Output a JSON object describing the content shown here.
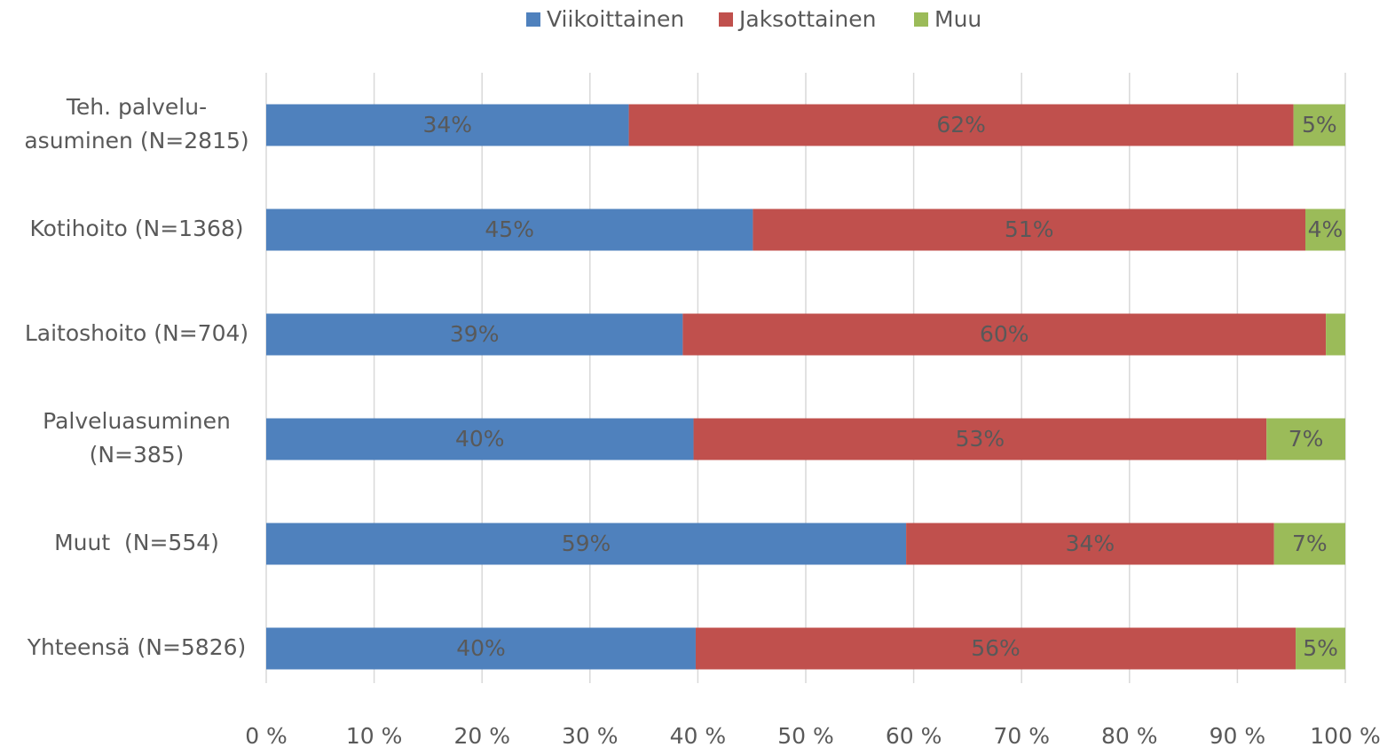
{
  "chart_data": {
    "type": "stacked_bar_horizontal",
    "categories": [
      "Teh. palvelu-\nasuminen (N=2815)",
      "Kotihoito (N=1368)",
      "Laitoshoito (N=704)",
      "Palveluasuminen\n(N=385)",
      "Muut  (N=554)",
      "Yhteensä (N=5826)"
    ],
    "series": [
      {
        "name": "Viikoittainen",
        "color": "#4f81bd",
        "values": [
          33.6,
          45.1,
          38.6,
          39.6,
          59.3,
          39.8
        ],
        "value_labels": [
          "34%",
          "45%",
          "39%",
          "40%",
          "59%",
          "40%"
        ]
      },
      {
        "name": "Jaksottainen",
        "color": "#c0504d",
        "values": [
          61.6,
          51.2,
          59.6,
          53.1,
          34.1,
          55.6
        ],
        "value_labels": [
          "62%",
          "51%",
          "60%",
          "53%",
          "34%",
          "56%"
        ]
      },
      {
        "name": "Muu",
        "color": "#9bbb59",
        "values": [
          4.8,
          3.7,
          1.8,
          7.3,
          6.6,
          4.6
        ],
        "value_labels": [
          "5%",
          "4%",
          null,
          "7%",
          "7%",
          "5%"
        ]
      }
    ],
    "xlim": [
      0,
      100
    ],
    "xticks": [
      {
        "value": 0,
        "label": "0 %"
      },
      {
        "value": 10,
        "label": "10 %"
      },
      {
        "value": 20,
        "label": "20 %"
      },
      {
        "value": 30,
        "label": "30 %"
      },
      {
        "value": 40,
        "label": "40 %"
      },
      {
        "value": 50,
        "label": "50 %"
      },
      {
        "value": 60,
        "label": "60 %"
      },
      {
        "value": 70,
        "label": "70 %"
      },
      {
        "value": 80,
        "label": "80 %"
      },
      {
        "value": 90,
        "label": "90 %"
      },
      {
        "value": 100,
        "label": "100 %"
      }
    ],
    "grid": true,
    "legend": "top"
  }
}
